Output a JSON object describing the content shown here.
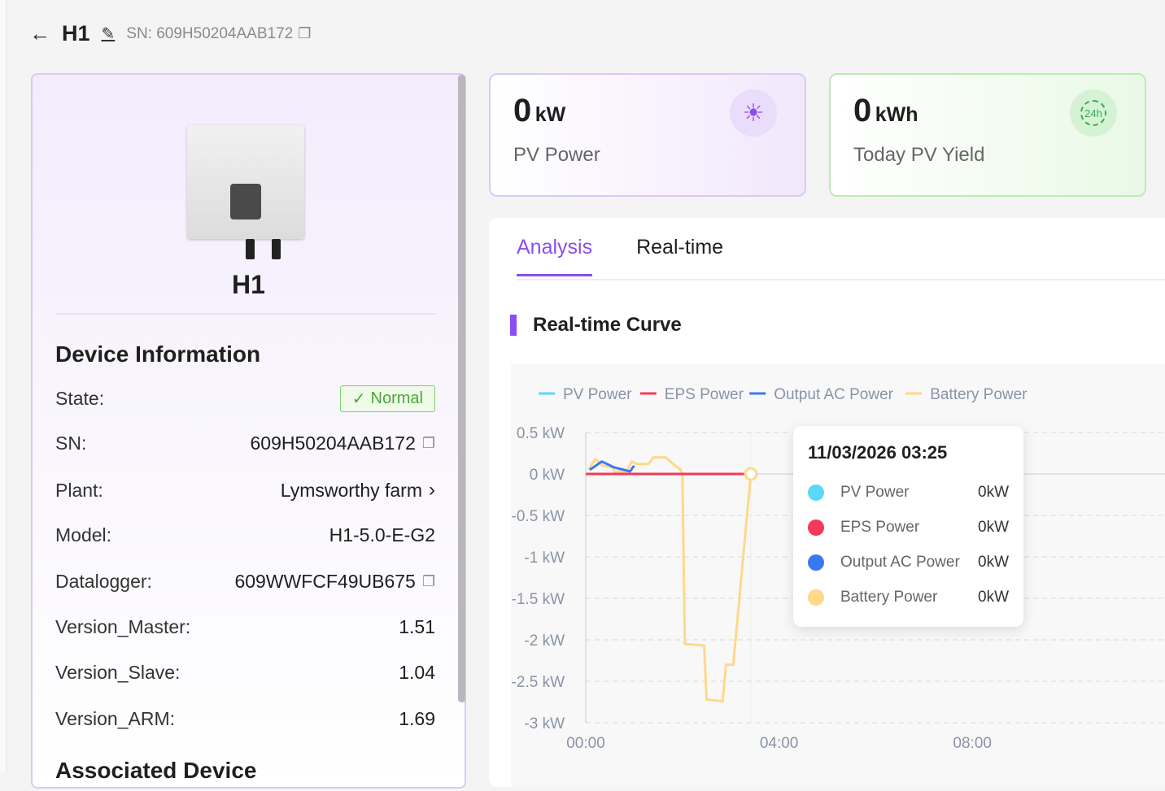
{
  "header": {
    "title": "H1",
    "sn": "SN: 609H50204AAB172"
  },
  "device": {
    "name": "H1",
    "section_title": "Device Information",
    "fields": [
      {
        "key": "State:",
        "value": "Normal",
        "type": "badge"
      },
      {
        "key": "SN:",
        "value": "609H50204AAB172",
        "type": "copy"
      },
      {
        "key": "Plant:",
        "value": "Lymsworthy farm",
        "type": "link"
      },
      {
        "key": "Model:",
        "value": "H1-5.0-E-G2"
      },
      {
        "key": "Datalogger:",
        "value": "609WWFCF49UB675",
        "type": "copy"
      },
      {
        "key": "Version_Master:",
        "value": "1.51"
      },
      {
        "key": "Version_Slave:",
        "value": "1.04"
      },
      {
        "key": "Version_ARM:",
        "value": "1.69"
      }
    ],
    "associated_title": "Associated Device"
  },
  "cards": [
    {
      "value": "0",
      "unit": "kW",
      "label": "PV Power",
      "icon": "sun-icon"
    },
    {
      "value": "0",
      "unit": "kWh",
      "label": "Today PV Yield",
      "icon": "24h-energy-icon"
    }
  ],
  "tabs": [
    {
      "label": "Analysis",
      "active": true
    },
    {
      "label": "Real-time",
      "active": false
    }
  ],
  "section": {
    "title": "Real-time Curve"
  },
  "tooltip": {
    "title": "11/03/2026 03:25",
    "rows": [
      {
        "name": "PV Power",
        "value": "0kW",
        "color": "#5ad8fa"
      },
      {
        "name": "EPS Power",
        "value": "0kW",
        "color": "#f5395a"
      },
      {
        "name": "Output AC Power",
        "value": "0kW",
        "color": "#3a78f2"
      },
      {
        "name": "Battery Power",
        "value": "0kW",
        "color": "#ffd88a"
      }
    ]
  },
  "chart_data": {
    "type": "line",
    "legend_position": "top-left",
    "grid": true,
    "ylim": [
      -3,
      0.5
    ],
    "y_ticks": [
      "0.5 kW",
      "0 kW",
      "-0.5 kW",
      "-1 kW",
      "-1.5 kW",
      "-2 kW",
      "-2.5 kW",
      "-3 kW"
    ],
    "x_ticks": [
      "00:00",
      "04:00",
      "08:00"
    ],
    "series": [
      {
        "name": "PV Power",
        "color": "#5ad8fa",
        "points": [
          [
            "00:00",
            0
          ],
          [
            "03:25",
            0
          ]
        ]
      },
      {
        "name": "EPS Power",
        "color": "#f5395a",
        "points": [
          [
            "00:00",
            0
          ],
          [
            "03:25",
            0
          ]
        ]
      },
      {
        "name": "Output AC Power",
        "color": "#3a78f2",
        "points": [
          [
            "00:05",
            0.05
          ],
          [
            "00:20",
            0.15
          ],
          [
            "00:35",
            0.08
          ],
          [
            "00:55",
            0.03
          ],
          [
            "01:00",
            0.1
          ]
        ]
      },
      {
        "name": "Battery Power",
        "color": "#ffd88a",
        "points": [
          [
            "00:03",
            0.05
          ],
          [
            "00:12",
            0.18
          ],
          [
            "00:21",
            0.1
          ],
          [
            "00:33",
            0.08
          ],
          [
            "00:36",
            0.03
          ],
          [
            "00:51",
            0.03
          ],
          [
            "00:57",
            0.15
          ],
          [
            "01:03",
            0.12
          ],
          [
            "01:18",
            0.12
          ],
          [
            "01:24",
            0.2
          ],
          [
            "01:39",
            0.2
          ],
          [
            "01:51",
            0.1
          ],
          [
            "01:58",
            0.05
          ],
          [
            "02:00",
            0
          ],
          [
            "02:03",
            -2.05
          ],
          [
            "02:27",
            -2.07
          ],
          [
            "02:30",
            -2.72
          ],
          [
            "02:50",
            -2.74
          ],
          [
            "02:54",
            -2.3
          ],
          [
            "03:03",
            -2.3
          ],
          [
            "03:06",
            -2.0
          ],
          [
            "03:25",
            0
          ]
        ]
      }
    ]
  }
}
